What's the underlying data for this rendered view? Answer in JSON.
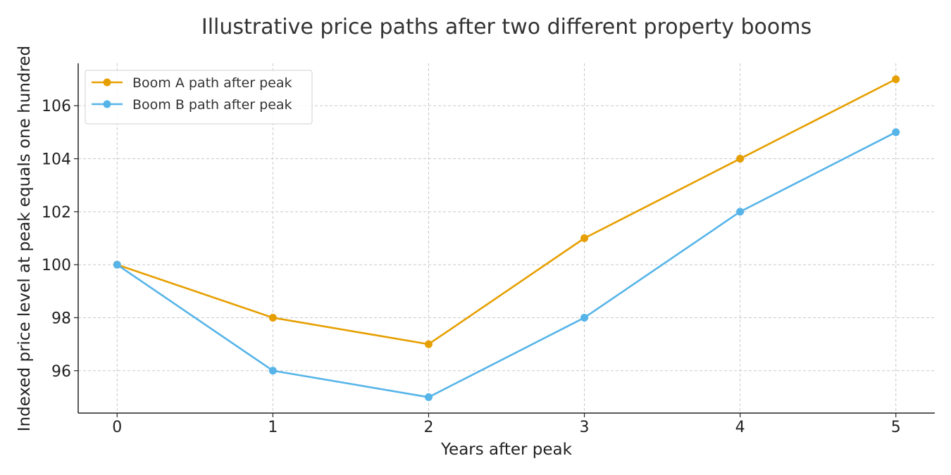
{
  "chart_data": {
    "type": "line",
    "title": "Illustrative price paths after two different property booms",
    "xlabel": "Years after peak",
    "ylabel": "Indexed price level at peak equals one hundred",
    "x": [
      0,
      1,
      2,
      3,
      4,
      5
    ],
    "x_ticks": [
      "0",
      "1",
      "2",
      "3",
      "4",
      "5"
    ],
    "y_ticks": [
      "96",
      "98",
      "100",
      "102",
      "104",
      "106"
    ],
    "xlim": [
      -0.25,
      5.25
    ],
    "ylim": [
      94.4,
      107.6
    ],
    "grid": true,
    "legend_position": "top-left",
    "series": [
      {
        "name": "Boom A path after peak",
        "color": "#E69F00",
        "values": [
          100,
          98,
          97,
          101,
          104,
          107
        ]
      },
      {
        "name": "Boom B path after peak",
        "color": "#56B4E9",
        "values": [
          100,
          96,
          95,
          98,
          102,
          105
        ]
      }
    ]
  }
}
